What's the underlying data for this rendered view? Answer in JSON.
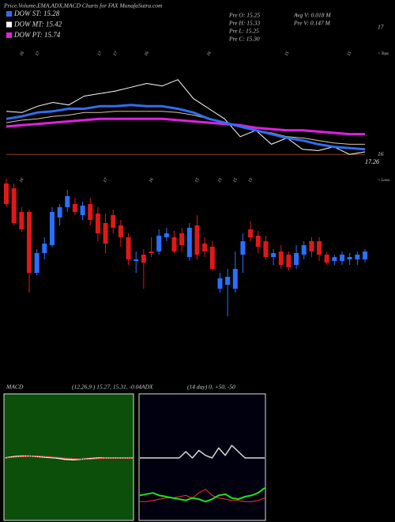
{
  "header": {
    "title": "Price,Volume,EMA,ADX,MACD Charts for FAX  MunafaSutra.com",
    "dow": [
      {
        "label": "DOW ST: 15.28",
        "color": "#2f6ef0"
      },
      {
        "label": "DOW MT: 15.42",
        "color": "#ffffff"
      },
      {
        "label": "DOW PT: 15.74",
        "color": "#e020e0"
      }
    ],
    "pre": [
      "Pre  O: 15.25",
      "Pre  H: 15.33",
      "Pre  L: 15.25",
      "Pre  C: 15.30"
    ],
    "volume": [
      "Avg V: 0.018 M",
      "Pre  V: 0.147 M"
    ]
  },
  "chart_data": [
    {
      "type": "line",
      "categories": [
        null,
        "16",
        "17",
        null,
        null,
        null,
        "17",
        "17",
        null,
        "16",
        null,
        null,
        null,
        "16",
        null,
        null,
        null,
        null,
        "15",
        null,
        null,
        null,
        "15",
        null
      ],
      "ylim": [
        15.97,
        17
      ],
      "yticks": [
        17,
        16
      ],
      "tick_line_color": "#8b4513",
      "side_note": "< Tops",
      "last_label": "17.26",
      "series": [
        {
          "color": "#ffffff",
          "width": 1,
          "values": [
            16.34,
            16.33,
            16.38,
            16.41,
            16.39,
            16.46,
            16.48,
            16.5,
            16.53,
            16.56,
            16.54,
            16.59,
            16.44,
            16.36,
            16.28,
            16.14,
            16.19,
            16.08,
            16.13,
            16.04,
            16.03,
            16.06,
            16.0,
            16.02
          ]
        },
        {
          "color": "#e020e0",
          "width": 3,
          "values": [
            16.22,
            16.23,
            16.24,
            16.25,
            16.26,
            16.27,
            16.28,
            16.28,
            16.28,
            16.28,
            16.28,
            16.27,
            16.26,
            16.25,
            16.24,
            16.23,
            16.21,
            16.2,
            16.19,
            16.19,
            16.18,
            16.17,
            16.16,
            16.16
          ]
        },
        {
          "color": "#d8c8a0",
          "width": 1,
          "values": [
            16.25,
            16.27,
            16.28,
            16.3,
            16.31,
            16.33,
            16.33,
            16.34,
            16.34,
            16.34,
            16.34,
            16.33,
            16.31,
            16.28,
            16.25,
            16.22,
            16.19,
            16.17,
            16.14,
            16.13,
            16.11,
            16.09,
            16.08,
            16.08
          ]
        },
        {
          "color": "#2f6ef0",
          "width": 3,
          "values": [
            16.28,
            16.3,
            16.33,
            16.34,
            16.36,
            16.36,
            16.38,
            16.38,
            16.39,
            16.38,
            16.38,
            16.36,
            16.33,
            16.28,
            16.25,
            16.22,
            16.19,
            16.16,
            16.13,
            16.11,
            16.08,
            16.06,
            16.05,
            16.04
          ]
        }
      ]
    },
    {
      "type": "candlestick",
      "side_note": "< Lows",
      "ylim": [
        14.2,
        16.3
      ],
      "up_color": "#2a70ff",
      "down_color": "#e01818",
      "categories": [
        null,
        null,
        "16",
        null,
        null,
        null,
        null,
        null,
        null,
        null,
        null,
        null,
        null,
        "17",
        null,
        null,
        null,
        null,
        null,
        "16",
        null,
        null,
        null,
        null,
        null,
        "15",
        null,
        null,
        "15",
        null,
        "15",
        null,
        "15",
        null,
        null,
        null,
        null,
        null,
        null,
        null,
        null,
        null,
        null,
        null,
        null,
        null,
        null,
        null
      ],
      "open": [
        16.18,
        16.12,
        15.82,
        15.82,
        15.05,
        15.3,
        15.4,
        15.75,
        15.88,
        15.92,
        15.78,
        15.92,
        15.8,
        15.68,
        15.78,
        15.65,
        15.5,
        15.2,
        15.28,
        15.32,
        15.32,
        15.5,
        15.5,
        15.55,
        15.25,
        15.65,
        15.42,
        15.38,
        14.85,
        14.9,
        14.85,
        15.28,
        15.6,
        15.52,
        15.45,
        15.25,
        15.32,
        15.28,
        15.15,
        15.28,
        15.45,
        15.45,
        15.28,
        15.2,
        15.2,
        15.22,
        15.22,
        15.22
      ],
      "high": [
        16.24,
        16.18,
        15.88,
        15.85,
        15.35,
        15.5,
        15.88,
        15.92,
        16.1,
        16.0,
        15.95,
        16.0,
        15.88,
        15.8,
        15.85,
        15.72,
        15.55,
        15.32,
        15.35,
        15.5,
        15.6,
        15.62,
        15.58,
        15.62,
        15.68,
        15.78,
        15.5,
        15.45,
        15.05,
        15.1,
        15.32,
        15.55,
        15.7,
        15.58,
        15.52,
        15.35,
        15.4,
        15.32,
        15.4,
        15.45,
        15.5,
        15.5,
        15.32,
        15.28,
        15.32,
        15.3,
        15.32,
        15.35
      ],
      "low": [
        15.88,
        15.65,
        15.57,
        14.8,
        15.02,
        15.22,
        15.38,
        15.65,
        15.82,
        15.78,
        15.72,
        15.65,
        15.45,
        15.3,
        15.55,
        15.38,
        15.15,
        15.05,
        14.85,
        15.25,
        15.28,
        15.45,
        15.3,
        15.32,
        15.2,
        15.22,
        15.25,
        15.08,
        14.8,
        14.5,
        14.8,
        15.05,
        15.45,
        15.3,
        15.22,
        15.15,
        15.1,
        15.08,
        15.1,
        15.22,
        15.25,
        15.2,
        15.15,
        15.15,
        15.15,
        15.15,
        15.15,
        15.18
      ],
      "close": [
        15.92,
        15.68,
        15.6,
        15.05,
        15.3,
        15.42,
        15.82,
        15.88,
        16.02,
        15.82,
        15.9,
        15.72,
        15.55,
        15.42,
        15.62,
        15.5,
        15.22,
        15.22,
        15.18,
        15.3,
        15.52,
        15.55,
        15.32,
        15.4,
        15.62,
        15.28,
        15.32,
        15.1,
        14.98,
        15.0,
        15.1,
        15.45,
        15.5,
        15.38,
        15.25,
        15.3,
        15.15,
        15.12,
        15.3,
        15.4,
        15.32,
        15.28,
        15.18,
        15.25,
        15.28,
        15.25,
        15.28,
        15.32
      ]
    },
    {
      "type": "line",
      "title": "MACD",
      "subtitle": "(12,26,9 ) 15.27, 15.31, -0.04",
      "ylim": [
        -1,
        1
      ],
      "background": "#0b4f0b",
      "series": [
        {
          "color": "#ffffff",
          "width": 1.5,
          "values": [
            0,
            0.02,
            0.03,
            0.03,
            0.02,
            0.01,
            0,
            -0.02,
            -0.03,
            -0.02,
            -0.01,
            0,
            0,
            0,
            0,
            0
          ]
        },
        {
          "color": "#ff3030",
          "width": 1.5,
          "dashed": true,
          "values": [
            0,
            0.01,
            0.02,
            0.03,
            0.03,
            0.02,
            0.01,
            0,
            -0.01,
            -0.02,
            -0.02,
            -0.01,
            0,
            0,
            0,
            0
          ]
        }
      ]
    },
    {
      "type": "line",
      "title": "ADX",
      "subtitle": "(14 day) 0, +50, -50",
      "ylim": [
        0,
        100
      ],
      "background": "#00000f",
      "series": [
        {
          "color": "#d8d8d8",
          "width": 1.5,
          "values": [
            50,
            50,
            50,
            50,
            50,
            50,
            50,
            55,
            50,
            56,
            52,
            50,
            58,
            52,
            60,
            55,
            50,
            50,
            50,
            50
          ]
        },
        {
          "color": "#ff3030",
          "width": 1,
          "values": [
            15,
            15,
            16,
            17,
            18,
            18,
            19,
            20,
            18,
            22,
            25,
            20,
            18,
            17,
            16,
            16,
            15,
            15,
            16,
            18
          ]
        },
        {
          "color": "#20e020",
          "width": 2,
          "values": [
            20,
            21,
            22,
            20,
            19,
            18,
            17,
            16,
            18,
            17,
            15,
            17,
            20,
            21,
            18,
            17,
            19,
            20,
            22,
            26
          ]
        }
      ]
    }
  ]
}
